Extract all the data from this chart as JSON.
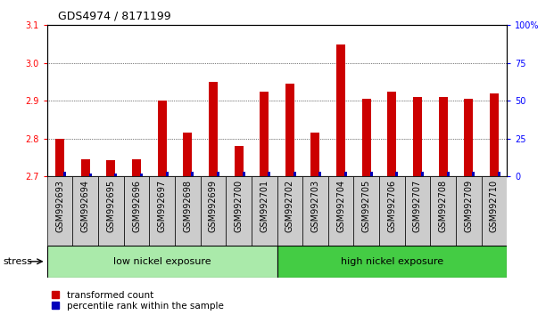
{
  "title": "GDS4974 / 8171199",
  "categories": [
    "GSM992693",
    "GSM992694",
    "GSM992695",
    "GSM992696",
    "GSM992697",
    "GSM992698",
    "GSM992699",
    "GSM992700",
    "GSM992701",
    "GSM992702",
    "GSM992703",
    "GSM992704",
    "GSM992705",
    "GSM992706",
    "GSM992707",
    "GSM992708",
    "GSM992709",
    "GSM992710"
  ],
  "red_values": [
    2.8,
    2.745,
    2.743,
    2.745,
    2.9,
    2.815,
    2.95,
    2.78,
    2.925,
    2.945,
    2.815,
    3.05,
    2.905,
    2.925,
    2.91,
    2.91,
    2.905,
    2.92
  ],
  "blue_percentiles": [
    3,
    2,
    2,
    2,
    3,
    3,
    3,
    3,
    3,
    3,
    3,
    3,
    3,
    3,
    3,
    3,
    3,
    3
  ],
  "ylim_left": [
    2.7,
    3.1
  ],
  "ylim_right": [
    0,
    100
  ],
  "yticks_left": [
    2.7,
    2.8,
    2.9,
    3.0,
    3.1
  ],
  "yticks_right": [
    0,
    25,
    50,
    75,
    100
  ],
  "ytick_labels_right": [
    "0",
    "25",
    "50",
    "75",
    "100%"
  ],
  "low_nickel_count": 9,
  "high_nickel_count": 9,
  "bar_baseline": 2.7,
  "red_color": "#cc0000",
  "blue_color": "#0000bb",
  "low_nickel_color": "#aaeaaa",
  "high_nickel_color": "#44cc44",
  "xtick_bg_color": "#cccccc",
  "stress_label": "stress",
  "low_label": "low nickel exposure",
  "high_label": "high nickel exposure",
  "legend1": "transformed count",
  "legend2": "percentile rank within the sample",
  "title_fontsize": 9,
  "tick_fontsize": 7,
  "label_fontsize": 8
}
